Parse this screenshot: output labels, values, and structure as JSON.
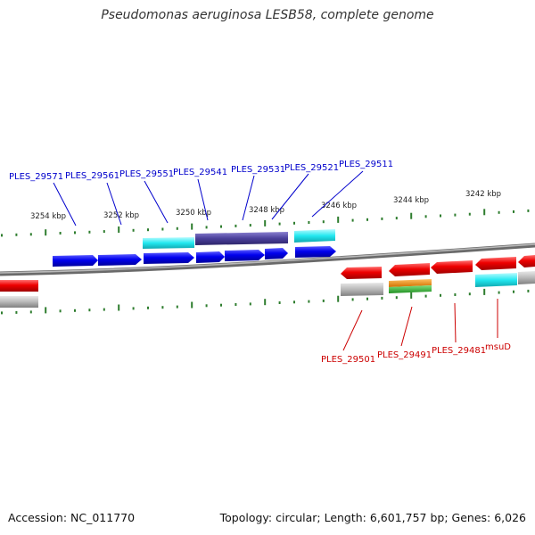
{
  "title": "Pseudomonas aeruginosa LESB58, complete genome",
  "accession": "Accession: NC_011770",
  "topology": "Topology: circular; Length: 6,601,757 bp; Genes: 6,026",
  "colors": {
    "upper_label": "#0000cc",
    "lower_label": "#cc0000",
    "tick": "#2e7d2e",
    "backbone": "#8a8a8a",
    "blue": "#0000ee",
    "cyan": "#22e8f0",
    "slate": "#4a3f9a",
    "red": "#ee0000",
    "gray": "#b8b8b8",
    "orange": "#f08a00",
    "green": "#33bb33"
  },
  "scale_labels": [
    "3254 kbp",
    "3252 kbp",
    "3250 kbp",
    "3248 kbp",
    "3246 kbp",
    "3244 kbp",
    "3242 kbp"
  ],
  "upper_gene_labels": [
    "PLES_29571",
    "PLES_29561",
    "PLES_29551",
    "PLES_29541",
    "PLES_29531",
    "PLES_29521",
    "PLES_29511"
  ],
  "lower_gene_labels": [
    "PLES_29501",
    "PLES_29491",
    "PLES_29481",
    "msuD"
  ]
}
